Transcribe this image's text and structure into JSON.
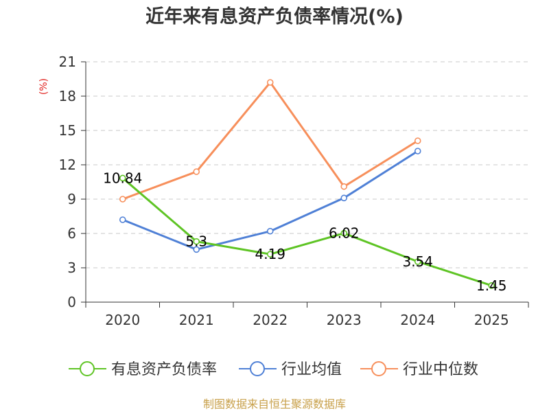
{
  "chart_data": {
    "type": "line",
    "title": "近年来有息资产负债率情况(%)",
    "ylabel": "(%)",
    "xlabel": "",
    "ylim": [
      0,
      21
    ],
    "yticks": [
      0,
      3,
      6,
      9,
      12,
      15,
      18,
      21
    ],
    "categories": [
      "2020",
      "2021",
      "2022",
      "2023",
      "2024",
      "2025"
    ],
    "grid": true,
    "legend_position": "bottom",
    "series": [
      {
        "name": "有息资产负债率",
        "color": "#5ec424",
        "values": [
          10.84,
          5.3,
          4.19,
          6.02,
          3.54,
          1.45
        ],
        "labels": [
          "10.84",
          "5.3",
          "4.19",
          "6.02",
          "3.54",
          "1.45"
        ]
      },
      {
        "name": "行业均值",
        "color": "#4f80d6",
        "values": [
          7.2,
          4.6,
          6.2,
          9.1,
          13.2,
          null
        ]
      },
      {
        "name": "行业中位数",
        "color": "#f78f5b",
        "values": [
          9.0,
          11.4,
          19.2,
          10.1,
          14.1,
          null
        ]
      }
    ],
    "source": "制图数据来自恒生聚源数据库"
  }
}
